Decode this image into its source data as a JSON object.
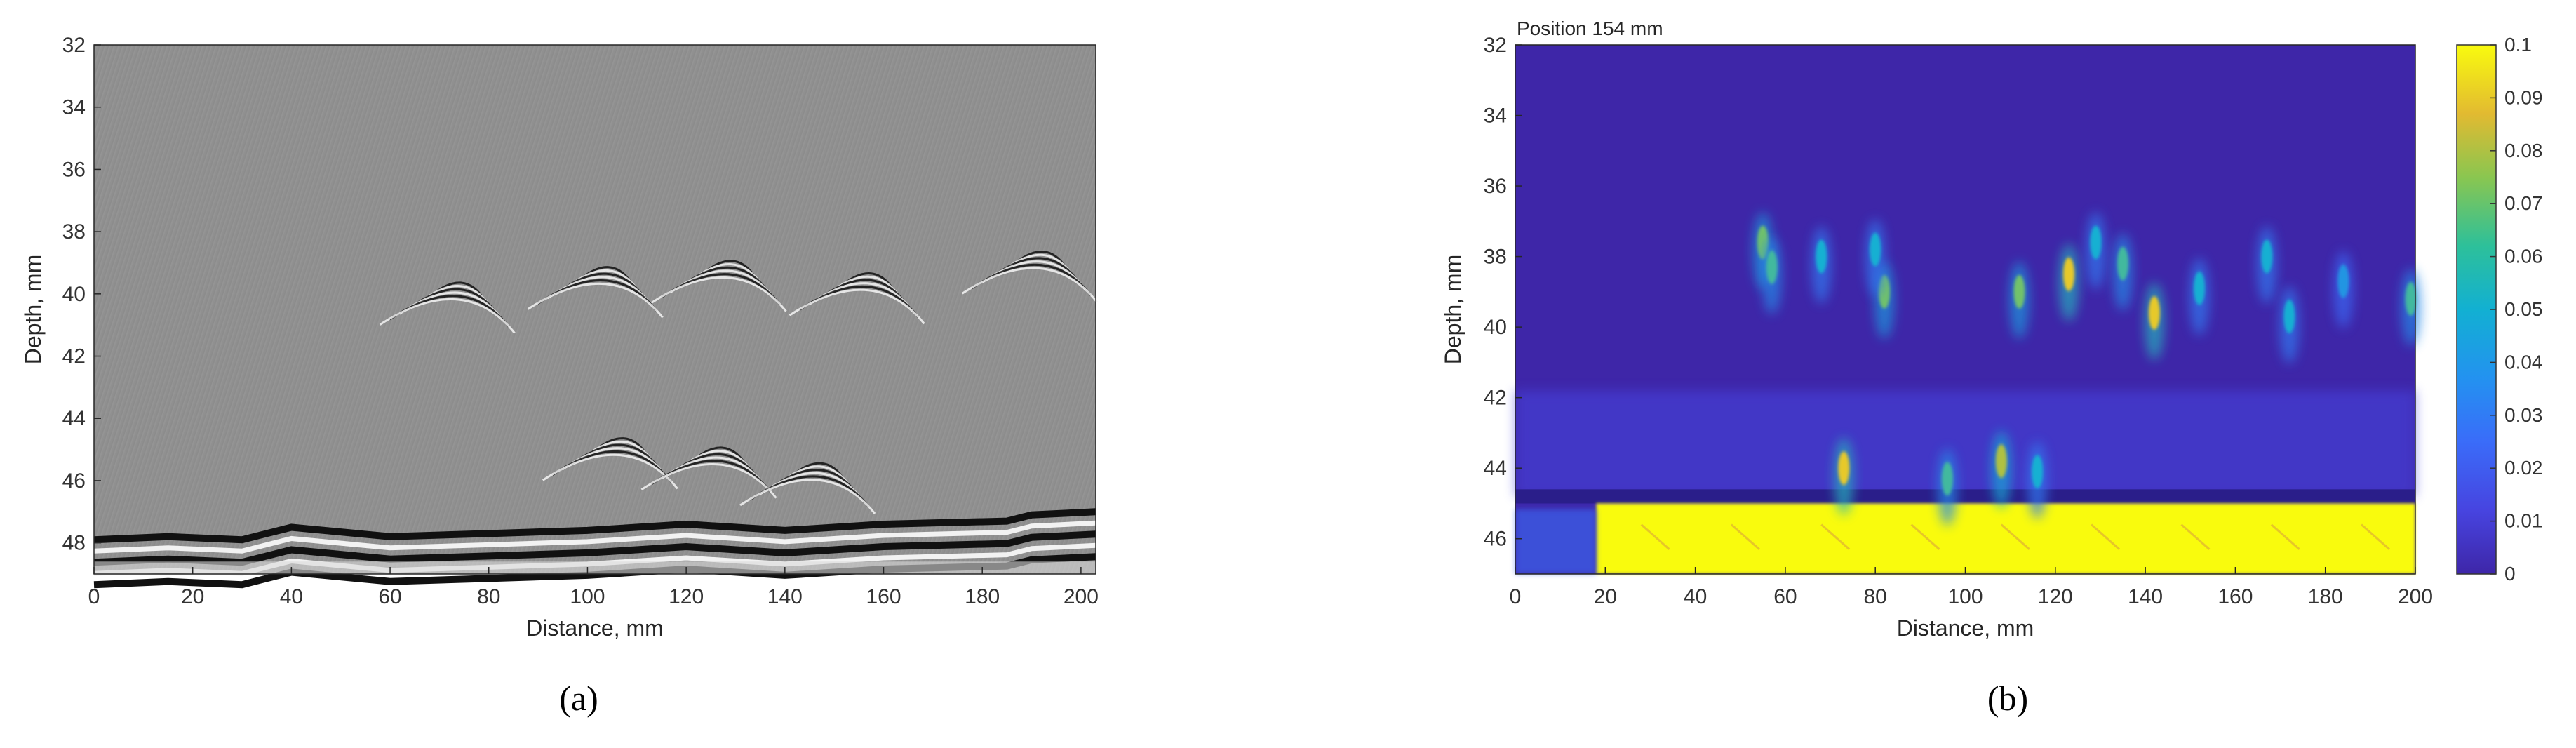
{
  "chart_data": [
    {
      "type": "heatmap",
      "panel_label": "(a)",
      "colormap": "grayscale",
      "xlabel": "Distance, mm",
      "ylabel": "Depth, mm",
      "xlim": [
        0,
        203
      ],
      "ylim": [
        32,
        49
      ],
      "y_reversed": true,
      "xticks": [
        "0",
        "20",
        "40",
        "60",
        "80",
        "100",
        "120",
        "140",
        "160",
        "180",
        "200"
      ],
      "yticks": [
        "32",
        "34",
        "36",
        "38",
        "40",
        "42",
        "44",
        "46",
        "48"
      ],
      "back_wall_depth": [
        [
          0,
          47.9
        ],
        [
          15,
          47.8
        ],
        [
          30,
          47.9
        ],
        [
          40,
          47.5
        ],
        [
          60,
          47.8
        ],
        [
          80,
          47.7
        ],
        [
          100,
          47.6
        ],
        [
          120,
          47.4
        ],
        [
          140,
          47.6
        ],
        [
          160,
          47.4
        ],
        [
          185,
          47.3
        ],
        [
          190,
          47.1
        ],
        [
          203,
          47.0
        ]
      ],
      "echo_clusters": [
        {
          "x": 75,
          "depth": 39.5
        },
        {
          "x": 105,
          "depth": 39.0
        },
        {
          "x": 130,
          "depth": 38.8
        },
        {
          "x": 158,
          "depth": 39.2
        },
        {
          "x": 193,
          "depth": 38.5
        },
        {
          "x": 108,
          "depth": 44.5
        },
        {
          "x": 128,
          "depth": 44.8
        },
        {
          "x": 148,
          "depth": 45.3
        }
      ]
    },
    {
      "type": "heatmap",
      "panel_label": "(b)",
      "title": "Position 154 mm",
      "colormap": "parula",
      "xlabel": "Distance, mm",
      "ylabel": "Depth, mm",
      "xlim": [
        0,
        200
      ],
      "ylim": [
        32,
        47
      ],
      "y_reversed": true,
      "xticks": [
        "0",
        "20",
        "40",
        "60",
        "80",
        "100",
        "120",
        "140",
        "160",
        "180",
        "200"
      ],
      "yticks": [
        "32",
        "34",
        "36",
        "38",
        "40",
        "42",
        "44",
        "46"
      ],
      "colorbar_ticks": [
        "0",
        "0.01",
        "0.02",
        "0.03",
        "0.04",
        "0.05",
        "0.06",
        "0.07",
        "0.08",
        "0.09",
        "0.1"
      ],
      "clim": [
        0,
        0.1
      ],
      "colors": {
        "low": "#3E26A8",
        "mid": "#20B2AA",
        "high": "#F9FB0E"
      },
      "back_wall": {
        "depth_top": 45.0,
        "depth_bottom": 47.0,
        "x_start": 18,
        "x_end": 200,
        "value": 0.1
      },
      "hotspots": [
        {
          "x": 55,
          "depth": 37.6,
          "value": 0.07
        },
        {
          "x": 57,
          "depth": 38.3,
          "value": 0.06
        },
        {
          "x": 68,
          "depth": 38.0,
          "value": 0.05
        },
        {
          "x": 73,
          "depth": 44.0,
          "value": 0.09
        },
        {
          "x": 82,
          "depth": 39.0,
          "value": 0.07
        },
        {
          "x": 80,
          "depth": 37.8,
          "value": 0.05
        },
        {
          "x": 96,
          "depth": 44.3,
          "value": 0.06
        },
        {
          "x": 108,
          "depth": 43.8,
          "value": 0.08
        },
        {
          "x": 112,
          "depth": 39.0,
          "value": 0.07
        },
        {
          "x": 116,
          "depth": 44.1,
          "value": 0.05
        },
        {
          "x": 123,
          "depth": 38.5,
          "value": 0.09
        },
        {
          "x": 129,
          "depth": 37.6,
          "value": 0.05
        },
        {
          "x": 135,
          "depth": 38.2,
          "value": 0.06
        },
        {
          "x": 142,
          "depth": 39.6,
          "value": 0.09
        },
        {
          "x": 152,
          "depth": 38.9,
          "value": 0.05
        },
        {
          "x": 167,
          "depth": 38.0,
          "value": 0.05
        },
        {
          "x": 172,
          "depth": 39.7,
          "value": 0.05
        },
        {
          "x": 184,
          "depth": 38.7,
          "value": 0.04
        },
        {
          "x": 199,
          "depth": 39.2,
          "value": 0.06
        }
      ]
    }
  ]
}
